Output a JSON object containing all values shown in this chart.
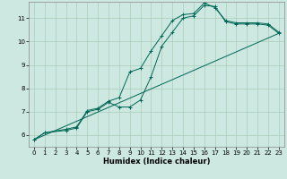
{
  "title": "",
  "xlabel": "Humidex (Indice chaleur)",
  "ylabel": "",
  "background_color": "#cce8e0",
  "grid_color": "#aaccbb",
  "line_color": "#006655",
  "xlim": [
    -0.5,
    23.5
  ],
  "ylim": [
    5.5,
    11.7
  ],
  "xticks": [
    0,
    1,
    2,
    3,
    4,
    5,
    6,
    7,
    8,
    9,
    10,
    11,
    12,
    13,
    14,
    15,
    16,
    17,
    18,
    19,
    20,
    21,
    22,
    23
  ],
  "yticks": [
    6,
    7,
    8,
    9,
    10,
    11
  ],
  "series": [
    {
      "x": [
        0,
        1,
        3,
        4,
        5,
        6,
        7,
        8,
        9,
        10,
        11,
        12,
        13,
        14,
        15,
        16,
        17,
        18,
        19,
        20,
        21,
        22,
        23
      ],
      "y": [
        5.8,
        6.1,
        6.2,
        6.3,
        7.0,
        7.1,
        7.4,
        7.2,
        7.2,
        7.5,
        8.5,
        9.8,
        10.4,
        11.0,
        11.1,
        11.55,
        11.5,
        10.85,
        10.75,
        10.75,
        10.75,
        10.7,
        10.35
      ],
      "has_markers": true
    },
    {
      "x": [
        0,
        1,
        3,
        4,
        5,
        6,
        7,
        8,
        9,
        10,
        11,
        12,
        13,
        14,
        15,
        16,
        17,
        18,
        19,
        20,
        21,
        22,
        23
      ],
      "y": [
        5.8,
        6.1,
        6.25,
        6.35,
        7.05,
        7.15,
        7.45,
        7.6,
        8.7,
        8.85,
        9.6,
        10.25,
        10.9,
        11.15,
        11.2,
        11.65,
        11.45,
        10.9,
        10.8,
        10.8,
        10.8,
        10.75,
        10.4
      ],
      "has_markers": true
    },
    {
      "x": [
        0,
        23
      ],
      "y": [
        5.8,
        10.35
      ],
      "has_markers": false
    }
  ],
  "tick_fontsize": 5.0,
  "xlabel_fontsize": 6.0,
  "linewidth": 0.7,
  "markersize": 3.5,
  "markeredgewidth": 0.7
}
